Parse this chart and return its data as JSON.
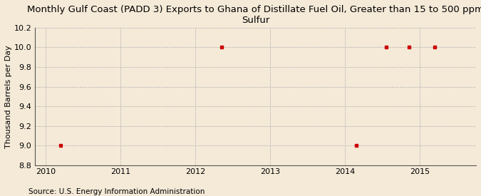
{
  "title": "Monthly Gulf Coast (PADD 3) Exports to Ghana of Distillate Fuel Oil, Greater than 15 to 500 ppm\nSulfur",
  "ylabel": "Thousand Barrels per Day",
  "source": "Source: U.S. Energy Information Administration",
  "background_color": "#f5ead8",
  "data_points": [
    [
      2010.2,
      9.0
    ],
    [
      2012.35,
      10.0
    ],
    [
      2014.15,
      9.0
    ],
    [
      2014.55,
      10.0
    ],
    [
      2014.85,
      10.0
    ],
    [
      2015.2,
      10.0
    ]
  ],
  "marker_color": "#cc0000",
  "marker_size": 3.5,
  "xlim": [
    2009.85,
    2015.75
  ],
  "ylim": [
    8.8,
    10.2
  ],
  "yticks": [
    8.8,
    9.0,
    9.2,
    9.4,
    9.6,
    9.8,
    10.0,
    10.2
  ],
  "xticks": [
    2010,
    2011,
    2012,
    2013,
    2014,
    2015
  ],
  "grid_color": "#b0b0b0",
  "title_fontsize": 9.5,
  "axis_fontsize": 8,
  "tick_fontsize": 8,
  "source_fontsize": 7.5
}
